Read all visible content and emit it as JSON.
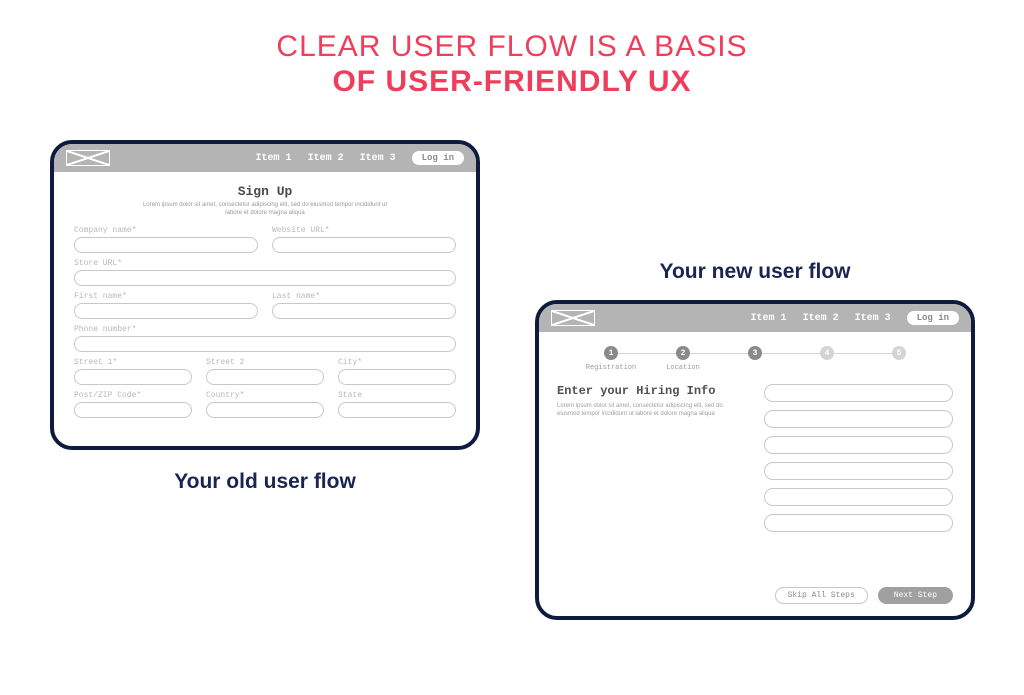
{
  "colors": {
    "headline": "#ef3e5b",
    "caption": "#1a2552",
    "mockup_border": "#0f1a3f",
    "header_bg": "#b4b4b4",
    "field_border": "#c8c8c8",
    "muted_text": "#9a9a9a",
    "step_active": "#8a8a8a",
    "step_inactive": "#d4d4d4",
    "next_btn_bg": "#a0a0a0",
    "background": "#ffffff"
  },
  "headline": {
    "line1": "CLEAR USER FLOW IS A BASIS",
    "line2": "OF USER-FRIENDLY UX"
  },
  "nav": {
    "items": [
      "Item 1",
      "Item 2",
      "Item 3"
    ],
    "login": "Log in"
  },
  "old": {
    "caption": "Your old user flow",
    "form_title": "Sign Up",
    "lorem": "Lorem ipsum dolor sit amet, consectetur adipiscing elit, sed do eiusmod tempor incididunt ut labore et dolore magna aliqua",
    "fields": {
      "company": "Company name*",
      "website": "Website URL*",
      "store": "Store URL*",
      "first": "First name*",
      "last": "Last name*",
      "phone": "Phone number*",
      "street1": "Street 1*",
      "street2": "Street 2",
      "city": "City*",
      "zip": "Post/ZIP Code*",
      "country": "Country*",
      "state": "State"
    }
  },
  "new": {
    "caption": "Your new user flow",
    "steps": [
      {
        "num": "1",
        "label": "Registration",
        "active": true
      },
      {
        "num": "2",
        "label": "Location",
        "active": true
      },
      {
        "num": "3",
        "label": "",
        "active": true
      },
      {
        "num": "4",
        "label": "",
        "active": false
      },
      {
        "num": "5",
        "label": "",
        "active": false
      }
    ],
    "heading": "Enter your Hiring Info",
    "lorem": "Lorem ipsum dolor sit amet, consectetur adipiscing elit, sed do eiusmod tempor incididunt ut labore et dolore magna aliqua",
    "input_count": 6,
    "skip": "Skip All Steps",
    "next": "Next Step"
  }
}
